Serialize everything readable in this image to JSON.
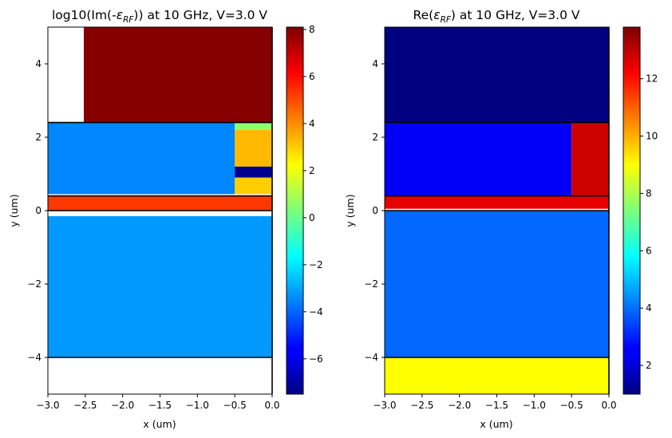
{
  "chart_data": [
    {
      "type": "heatmap",
      "title_pre": "log10(Im(-",
      "title_eps": "ε",
      "title_sub": "RF",
      "title_post": ")) at 10 GHz, V=3.0 V",
      "xlabel": "x (um)",
      "ylabel": "y (um)",
      "xlim": [
        -3.0,
        0.0
      ],
      "ylim": [
        -5.0,
        5.0
      ],
      "x_ticks": [
        -3.0,
        -2.5,
        -2.0,
        -1.5,
        -1.0,
        -0.5,
        0.0
      ],
      "x_tick_labels": [
        "−3.0",
        "−2.5",
        "−2.0",
        "−1.5",
        "−1.0",
        "−0.5",
        "0.0"
      ],
      "y_ticks": [
        -4,
        -2,
        0,
        2,
        4
      ],
      "y_tick_labels": [
        "−4",
        "−2",
        "0",
        "2",
        "4"
      ],
      "colorbar": {
        "min": -7.5,
        "max": 8.1,
        "ticks": [
          -6,
          -4,
          -2,
          0,
          2,
          4,
          6,
          8
        ],
        "tick_labels": [
          "−6",
          "−4",
          "−2",
          "0",
          "2",
          "4",
          "6",
          "8"
        ]
      },
      "regions": [
        {
          "x": [
            -2.52,
            0.0
          ],
          "y": [
            2.4,
            5.0
          ],
          "value": 8.0
        },
        {
          "x": [
            -3.0,
            -0.5
          ],
          "y": [
            0.45,
            2.4
          ],
          "value": -3.5
        },
        {
          "x": [
            -0.5,
            0.0
          ],
          "y": [
            2.2,
            2.4
          ],
          "value": 0.5
        },
        {
          "x": [
            -0.5,
            0.0
          ],
          "y": [
            1.2,
            2.2
          ],
          "value": 3.3
        },
        {
          "x": [
            -0.5,
            0.0
          ],
          "y": [
            0.9,
            1.2
          ],
          "value": -7.3
        },
        {
          "x": [
            -0.5,
            0.0
          ],
          "y": [
            0.45,
            0.9
          ],
          "value": 3.0
        },
        {
          "x": [
            -3.0,
            0.0
          ],
          "y": [
            0.0,
            0.4
          ],
          "value": 5.3
        },
        {
          "x": [
            -3.0,
            0.0
          ],
          "y": [
            -4.0,
            -0.15
          ],
          "value": -3.2
        }
      ],
      "boundaries_y": [
        2.4,
        0.4,
        0.0,
        -4.0
      ]
    },
    {
      "type": "heatmap",
      "title_pre": "Re(",
      "title_eps": "ε",
      "title_sub": "RF",
      "title_post": ") at 10 GHz, V=3.0 V",
      "xlabel": "x (um)",
      "ylabel": "y (um)",
      "xlim": [
        -3.0,
        0.0
      ],
      "ylim": [
        -5.0,
        5.0
      ],
      "x_ticks": [
        -3.0,
        -2.5,
        -2.0,
        -1.5,
        -1.0,
        -0.5,
        0.0
      ],
      "x_tick_labels": [
        "−3.0",
        "−2.5",
        "−2.0",
        "−1.5",
        "−1.0",
        "−0.5",
        "0.0"
      ],
      "y_ticks": [
        -4,
        -2,
        0,
        2,
        4
      ],
      "y_tick_labels": [
        "−4",
        "−2",
        "0",
        "2",
        "4"
      ],
      "colorbar": {
        "min": 1.0,
        "max": 13.8,
        "ticks": [
          2,
          4,
          6,
          8,
          10,
          12
        ],
        "tick_labels": [
          "2",
          "4",
          "6",
          "8",
          "10",
          "12"
        ]
      },
      "regions": [
        {
          "x": [
            -3.0,
            0.0
          ],
          "y": [
            2.4,
            5.0
          ],
          "value": 1.0
        },
        {
          "x": [
            -3.0,
            -0.5
          ],
          "y": [
            0.4,
            2.4
          ],
          "value": 2.5
        },
        {
          "x": [
            -0.5,
            0.0
          ],
          "y": [
            0.4,
            2.4
          ],
          "value": 12.8
        },
        {
          "x": [
            -3.0,
            0.0
          ],
          "y": [
            0.05,
            0.4
          ],
          "value": 12.5
        },
        {
          "x": [
            -3.0,
            0.0
          ],
          "y": [
            -4.0,
            0.0
          ],
          "value": 3.9
        },
        {
          "x": [
            -3.0,
            0.0
          ],
          "y": [
            -5.0,
            -4.0
          ],
          "value": 9.0
        }
      ],
      "boundaries_y": [
        2.4,
        0.4,
        0.0,
        -4.0
      ]
    }
  ]
}
